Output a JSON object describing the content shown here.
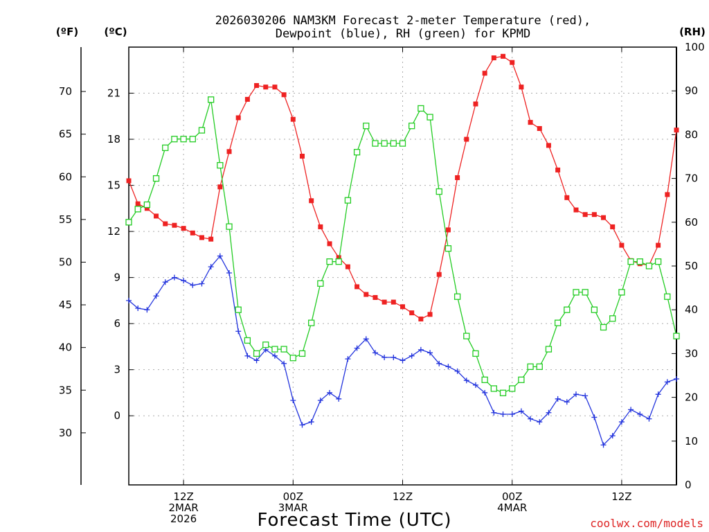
{
  "chart_data": {
    "type": "line",
    "title_line1": "2026030206 NAM3KM Forecast 2-meter Temperature (red),",
    "title_line2": "Dewpoint (blue), RH (green) for KPMD",
    "xlabel": "Forecast Time (UTC)",
    "left_outer_unit": "(ºF)",
    "left_inner_unit": "(ºC)",
    "right_unit": "(RH)",
    "credit": "coolwx.com/models",
    "x_range_hours": [
      0,
      60
    ],
    "ylim_c": [
      -4.5,
      24.0
    ],
    "ylim_rh": [
      0,
      100
    ],
    "x_ticks": [
      {
        "hour": 6,
        "lines": [
          "12Z",
          "2MAR",
          "2026"
        ]
      },
      {
        "hour": 18,
        "lines": [
          "00Z",
          "3MAR"
        ]
      },
      {
        "hour": 30,
        "lines": [
          "12Z"
        ]
      },
      {
        "hour": 42,
        "lines": [
          "00Z",
          "4MAR"
        ]
      },
      {
        "hour": 54,
        "lines": [
          "12Z"
        ]
      }
    ],
    "c_ticks": [
      0,
      3,
      6,
      9,
      12,
      15,
      18,
      21
    ],
    "f_ticks": [
      30,
      35,
      40,
      45,
      50,
      55,
      60,
      65,
      70
    ],
    "rh_ticks": [
      0,
      10,
      20,
      30,
      40,
      50,
      60,
      70,
      80,
      90,
      100
    ],
    "series": [
      {
        "name": "2-meter Temperature",
        "unit": "C",
        "color": "#ee2222",
        "marker": "filled-square",
        "values": [
          15.3,
          13.8,
          13.5,
          13.0,
          12.5,
          12.4,
          12.2,
          11.9,
          11.6,
          11.5,
          14.9,
          17.2,
          19.4,
          20.6,
          21.5,
          21.4,
          21.4,
          20.9,
          19.3,
          16.9,
          14.0,
          12.3,
          11.2,
          10.3,
          9.7,
          8.4,
          7.9,
          7.7,
          7.4,
          7.4,
          7.1,
          6.7,
          6.3,
          6.6,
          9.2,
          12.1,
          15.5,
          18.0,
          20.3,
          22.3,
          23.3,
          23.4,
          23.0,
          21.4,
          19.1,
          18.7,
          17.6,
          16.0,
          14.2,
          13.4,
          13.1,
          13.1,
          12.9,
          12.3,
          11.1,
          10.1,
          9.9,
          9.8,
          11.1,
          14.4,
          18.6
        ]
      },
      {
        "name": "Dewpoint",
        "unit": "C",
        "color": "#2233dd",
        "marker": "plus",
        "values": [
          7.5,
          7.0,
          6.9,
          7.8,
          8.7,
          9.0,
          8.8,
          8.5,
          8.6,
          9.7,
          10.4,
          9.3,
          5.5,
          3.9,
          3.6,
          4.3,
          3.9,
          3.4,
          1.0,
          -0.6,
          -0.4,
          1.0,
          1.5,
          1.1,
          3.7,
          4.4,
          5.0,
          4.1,
          3.8,
          3.8,
          3.6,
          3.9,
          4.3,
          4.1,
          3.4,
          3.2,
          2.9,
          2.3,
          2.0,
          1.5,
          0.2,
          0.1,
          0.1,
          0.3,
          -0.2,
          -0.4,
          0.2,
          1.1,
          0.9,
          1.4,
          1.3,
          -0.1,
          -1.9,
          -1.3,
          -0.4,
          0.4,
          0.1,
          -0.2,
          1.4,
          2.2,
          2.4
        ]
      },
      {
        "name": "RH",
        "unit": "%",
        "color": "#22cc22",
        "marker": "open-square",
        "values": [
          60,
          63,
          64,
          70,
          77,
          79,
          79,
          79,
          81,
          88,
          73,
          59,
          40,
          33,
          30,
          32,
          31,
          31,
          29,
          30,
          37,
          46,
          51,
          51,
          65,
          76,
          82,
          78,
          78,
          78,
          78,
          82,
          86,
          84,
          67,
          54,
          43,
          34,
          30,
          24,
          22,
          21,
          22,
          24,
          27,
          27,
          31,
          37,
          40,
          44,
          44,
          40,
          36,
          38,
          44,
          51,
          51,
          50,
          51,
          43,
          34
        ]
      }
    ]
  }
}
